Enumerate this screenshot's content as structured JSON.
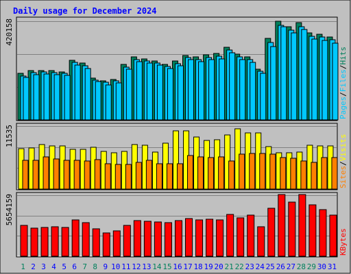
{
  "title": "Daily usage for December 2024",
  "colors": {
    "background": "#c0c0c0",
    "title": "#0000ff",
    "hits": "#00805c",
    "files": "#00c8ff",
    "pages": "#00c8ff",
    "visits": "#ffff00",
    "sites": "#ff8000",
    "kbytes": "#ff0000",
    "weekend_day": "#00805c",
    "weekday": "#0000ff"
  },
  "chart_data": [
    {
      "type": "bar",
      "title": "Daily usage for December 2024",
      "categories": [
        "1",
        "2",
        "3",
        "4",
        "5",
        "6",
        "7",
        "8",
        "9",
        "10",
        "11",
        "12",
        "13",
        "14",
        "15",
        "16",
        "17",
        "18",
        "19",
        "20",
        "21",
        "22",
        "23",
        "24",
        "25",
        "26",
        "27",
        "28",
        "29",
        "30",
        "31"
      ],
      "ylim": [
        0,
        420158
      ],
      "y_max_label": "420158",
      "grid": true,
      "legend": "right",
      "legend_labels": [
        "Pages",
        "/",
        "Files",
        "/",
        "Hits"
      ],
      "series": [
        {
          "name": "Hits",
          "values": [
            197000,
            211000,
            211000,
            210000,
            205000,
            255000,
            242000,
            177000,
            167000,
            172000,
            235000,
            267000,
            260000,
            252000,
            237000,
            250000,
            275000,
            267000,
            276000,
            282000,
            309000,
            279000,
            267000,
            217000,
            347000,
            421000,
            398000,
            413000,
            372000,
            366000,
            354000
          ]
        },
        {
          "name": "Files",
          "values": [
            188000,
            202000,
            204000,
            202000,
            197000,
            244000,
            231000,
            170000,
            160000,
            165000,
            226000,
            257000,
            250000,
            242000,
            228000,
            239000,
            265000,
            256000,
            265000,
            272000,
            297000,
            268000,
            256000,
            208000,
            330000,
            404000,
            382000,
            397000,
            357000,
            352000,
            341000
          ]
        },
        {
          "name": "Pages",
          "values": [
            180000,
            193000,
            196000,
            194000,
            190000,
            233000,
            220000,
            162000,
            150000,
            158000,
            216000,
            248000,
            241000,
            233000,
            219000,
            230000,
            256000,
            247000,
            256000,
            261000,
            285000,
            258000,
            246000,
            198000,
            311000,
            397000,
            371000,
            386000,
            343000,
            338000,
            327000
          ]
        }
      ],
      "weekend_days": [
        "1",
        "7",
        "8",
        "14",
        "15",
        "21",
        "22",
        "28",
        "29"
      ]
    },
    {
      "type": "bar",
      "categories": [
        "1",
        "2",
        "3",
        "4",
        "5",
        "6",
        "7",
        "8",
        "9",
        "10",
        "11",
        "12",
        "13",
        "14",
        "15",
        "16",
        "17",
        "18",
        "19",
        "20",
        "21",
        "22",
        "23",
        "24",
        "25",
        "26",
        "27",
        "28",
        "29",
        "30",
        "31"
      ],
      "ylim": [
        0,
        11535
      ],
      "y_max_label": "11535",
      "grid": true,
      "legend": "right",
      "legend_labels": [
        "Sites",
        "/",
        "Visits"
      ],
      "series": [
        {
          "name": "Visits",
          "values": [
            7410,
            7500,
            8170,
            7880,
            7920,
            7230,
            7310,
            7710,
            6920,
            6620,
            6880,
            8170,
            8020,
            6750,
            8420,
            10670,
            10720,
            9530,
            8920,
            9090,
            9890,
            11020,
            10300,
            10300,
            7820,
            6690,
            6700,
            6710,
            8050,
            7960,
            7920
          ]
        },
        {
          "name": "Sites",
          "values": [
            5280,
            5280,
            5940,
            5500,
            5300,
            5240,
            5170,
            5340,
            4640,
            4550,
            4570,
            4910,
            5250,
            4620,
            4670,
            4650,
            6160,
            5940,
            5830,
            5920,
            5110,
            6390,
            6520,
            6520,
            6350,
            5740,
            5580,
            5100,
            4890,
            5750,
            5740
          ]
        }
      ]
    },
    {
      "type": "bar",
      "categories": [
        "1",
        "2",
        "3",
        "4",
        "5",
        "6",
        "7",
        "8",
        "9",
        "10",
        "11",
        "12",
        "13",
        "14",
        "15",
        "16",
        "17",
        "18",
        "19",
        "20",
        "21",
        "22",
        "23",
        "24",
        "25",
        "26",
        "27",
        "28",
        "29",
        "30",
        "31"
      ],
      "ylim": [
        0,
        5654159
      ],
      "y_max_label": "5654159",
      "grid": true,
      "legend": "right",
      "legend_labels": [
        "KBytes"
      ],
      "series": [
        {
          "name": "KBytes",
          "values": [
            2830000,
            2610000,
            2660000,
            2750000,
            2640000,
            3360000,
            3110000,
            2520000,
            2180000,
            2320000,
            2890000,
            3320000,
            3270000,
            3190000,
            3100000,
            3280000,
            3480000,
            3360000,
            3410000,
            3390000,
            3860000,
            3530000,
            3790000,
            2750000,
            4430000,
            5740000,
            5020000,
            5740000,
            4780000,
            4290000,
            3840000
          ]
        }
      ]
    }
  ]
}
